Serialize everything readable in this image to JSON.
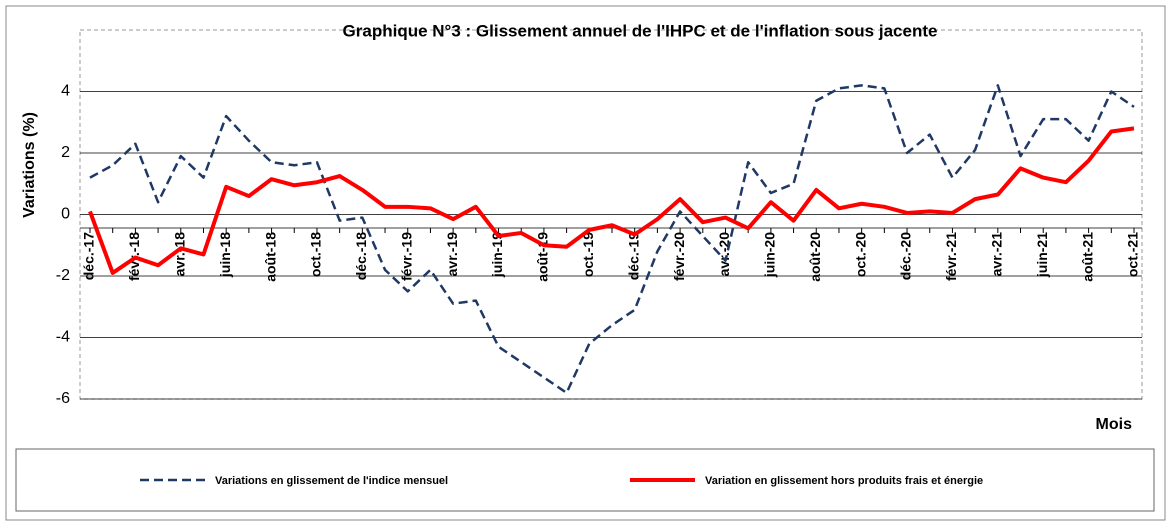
{
  "chart_data": {
    "type": "line",
    "title": "Graphique N°3 : Glissement annuel de l'IHPC et de l'inflation sous jacente",
    "y_label": "Variations (%)",
    "x_label": "Mois",
    "categories": [
      "déc.-17",
      null,
      "févr.-18",
      null,
      "avr.-18",
      null,
      "juin-18",
      null,
      "août-18",
      null,
      "oct.-18",
      null,
      "déc.-18",
      null,
      "févr.-19",
      null,
      "avr.-19",
      null,
      "juin-19",
      null,
      "août-19",
      null,
      "oct.-19",
      null,
      "déc.-19",
      null,
      "févr.-20",
      null,
      "avr.-20",
      null,
      "juin-20",
      null,
      "août-20",
      null,
      "oct.-20",
      null,
      "déc.-20",
      null,
      "févr.-21",
      null,
      "avr.-21",
      null,
      "juin-21",
      null,
      "août-21",
      null,
      "oct.-21"
    ],
    "series": [
      {
        "name": "Variations en glissement de l'indice mensuel",
        "color": "#1f3864",
        "dash": true,
        "values": [
          1.2,
          1.6,
          2.3,
          0.4,
          1.9,
          1.2,
          3.2,
          2.4,
          1.7,
          1.6,
          1.7,
          -0.2,
          -0.1,
          -1.8,
          -2.5,
          -1.8,
          -2.9,
          -2.8,
          -4.3,
          -4.8,
          -5.3,
          -5.8,
          -4.2,
          -3.6,
          -3.1,
          -1.2,
          0.1,
          -0.7,
          -1.5,
          1.7,
          0.7,
          1.0,
          3.7,
          4.1,
          4.2,
          4.1,
          2.0,
          2.6,
          1.2,
          2.1,
          4.2,
          1.9,
          3.1,
          3.1,
          2.4,
          4.0,
          3.5
        ]
      },
      {
        "name": "Variation en glissement hors produits frais et énergie",
        "color": "#ff0000",
        "dash": false,
        "values": [
          0.1,
          -1.9,
          -1.4,
          -1.65,
          -1.1,
          -1.3,
          0.9,
          0.6,
          1.15,
          0.95,
          1.05,
          1.25,
          0.8,
          0.25,
          0.25,
          0.2,
          -0.15,
          0.25,
          -0.7,
          -0.6,
          -1.0,
          -1.05,
          -0.5,
          -0.35,
          -0.65,
          -0.15,
          0.5,
          -0.25,
          -0.1,
          -0.45,
          0.4,
          -0.2,
          0.8,
          0.2,
          0.35,
          0.25,
          0.05,
          0.1,
          0.05,
          0.5,
          0.65,
          1.5,
          1.2,
          1.05,
          1.75,
          2.7,
          2.8
        ]
      }
    ],
    "ylim": [
      -6,
      6
    ],
    "yticks": [
      -6,
      -4,
      -2,
      0,
      2,
      4
    ],
    "grid": true
  }
}
